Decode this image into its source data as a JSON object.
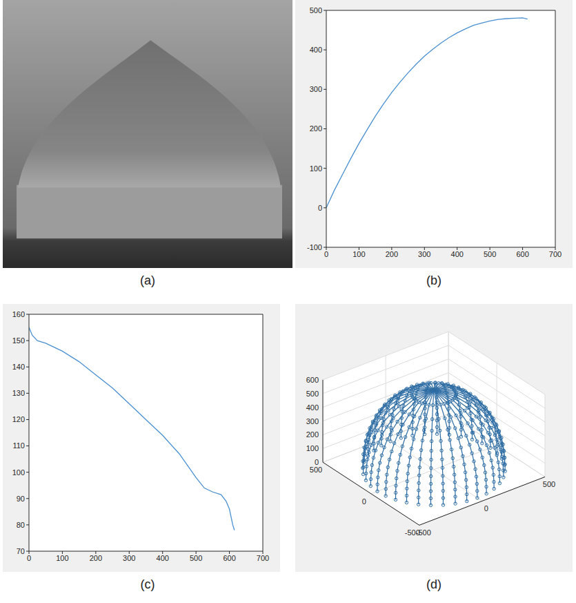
{
  "chart_data": [
    {
      "panel_label": "(a)",
      "type": "image"
    },
    {
      "panel_label": "(b)",
      "type": "line",
      "x": [
        0,
        25,
        50,
        75,
        100,
        125,
        150,
        175,
        200,
        225,
        250,
        275,
        300,
        325,
        350,
        375,
        400,
        425,
        450,
        475,
        500,
        525,
        550,
        575,
        600,
        615
      ],
      "values": [
        0,
        45,
        85,
        125,
        163,
        198,
        232,
        263,
        292,
        318,
        342,
        364,
        384,
        401,
        417,
        431,
        443,
        453,
        462,
        468,
        473,
        477,
        479,
        480,
        481,
        478
      ],
      "xlim": [
        0,
        700
      ],
      "xticks": [
        0,
        100,
        200,
        300,
        400,
        500,
        600,
        700
      ],
      "ylim": [
        -100,
        500
      ],
      "yticks": [
        -100,
        0,
        100,
        200,
        300,
        400,
        500
      ],
      "color": "#4a8fd1",
      "grid": false
    },
    {
      "panel_label": "(c)",
      "type": "line",
      "x": [
        0,
        10,
        25,
        50,
        100,
        150,
        200,
        250,
        300,
        350,
        400,
        450,
        500,
        525,
        550,
        575,
        590,
        600,
        610,
        615
      ],
      "values": [
        155,
        152,
        150,
        149,
        146,
        142,
        137,
        132,
        126,
        120,
        114,
        107,
        98,
        94,
        92.5,
        91.5,
        89,
        86,
        80,
        78
      ],
      "xlim": [
        0,
        700
      ],
      "xticks": [
        0,
        100,
        200,
        300,
        400,
        500,
        600,
        700
      ],
      "ylim": [
        70,
        160
      ],
      "yticks": [
        70,
        80,
        90,
        100,
        110,
        120,
        130,
        140,
        150,
        160
      ],
      "color": "#4a8fd1",
      "grid": false
    },
    {
      "panel_label": "(d)",
      "type": "scatter3d",
      "xlim": [
        -500,
        500
      ],
      "xticks": [
        -500,
        0,
        500
      ],
      "ylim": [
        -500,
        500
      ],
      "yticks": [
        -500,
        0,
        500
      ],
      "zlim": [
        0,
        600
      ],
      "zticks": [
        0,
        100,
        200,
        300,
        400,
        500,
        600
      ],
      "radius": [
        450,
        449,
        446,
        440,
        430,
        415,
        395,
        370,
        335,
        290,
        230,
        140,
        0
      ],
      "z": [
        0,
        50,
        100,
        150,
        200,
        250,
        300,
        350,
        400,
        450,
        500,
        550,
        580
      ],
      "color": "#2e6da4",
      "marker": "circle",
      "grid": true
    }
  ]
}
